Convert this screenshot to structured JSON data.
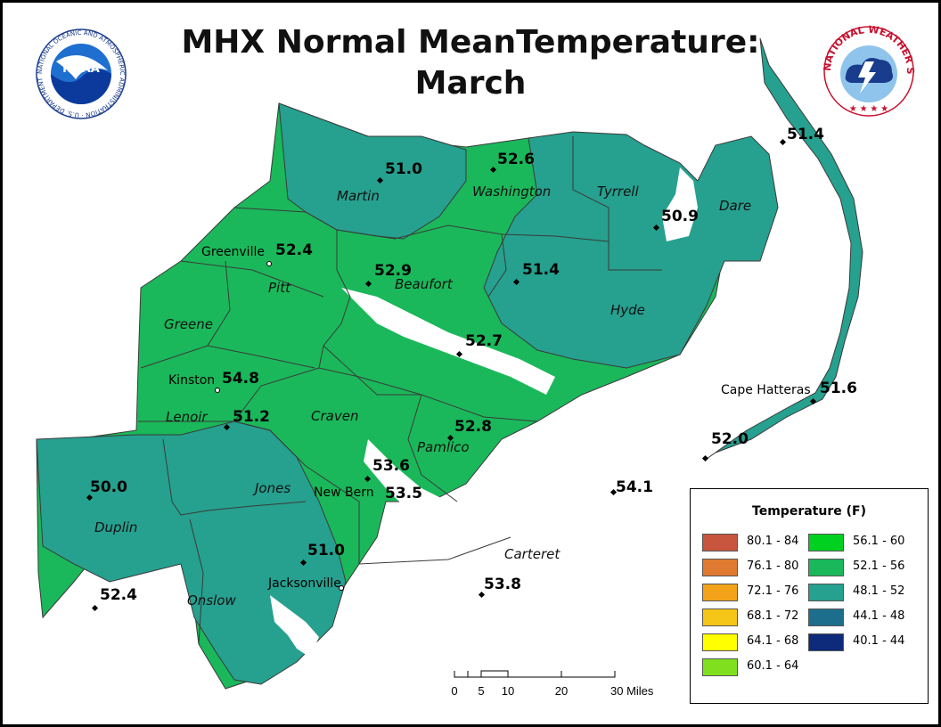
{
  "title": {
    "line1": "MHX Normal MeanTemperature:",
    "line2": "March"
  },
  "logos": {
    "noaa_text": "NOAA",
    "noaa_ring": "NATIONAL OCEANIC AND ATMOSPHERIC ADMINISTRATION · U.S. DEPARTMENT OF COMMERCE",
    "nws_ring": "NATIONAL WEATHER SERVICE"
  },
  "colors": {
    "water": "#ffffff",
    "c48_52": "#26a08f",
    "c52_56": "#1ab85a",
    "boundary": "#3a3a3a"
  },
  "counties": {
    "martin": "Martin",
    "washington": "Washington",
    "tyrrell": "Tyrrell",
    "dare": "Dare",
    "pitt": "Pitt",
    "beaufort": "Beaufort",
    "hyde": "Hyde",
    "greene": "Greene",
    "lenoir": "Lenoir",
    "craven": "Craven",
    "pamlico": "Pamlico",
    "jones": "Jones",
    "duplin": "Duplin",
    "onslow": "Onslow",
    "carteret": "Carteret"
  },
  "places": {
    "greenville": "Greenville",
    "kinston": "Kinston",
    "new_bern": "New Bern",
    "jacksonville": "Jacksonville",
    "cape_hatteras": "Cape Hatteras"
  },
  "stations": {
    "s_martin": "51.0",
    "s_washington": "52.6",
    "s_manteo": "51.4",
    "s_tyrrell": "50.9",
    "s_greenville": "52.4",
    "s_beaufort": "52.9",
    "s_hyde": "51.4",
    "s_aurora": "52.7",
    "s_kinston": "54.8",
    "s_lenoir": "51.2",
    "s_pamlico": "52.8",
    "s_hatteras": "51.6",
    "s_buxton": "52.0",
    "s_newbern1": "53.6",
    "s_newbern2": "53.5",
    "s_cedar": "54.1",
    "s_duplin": "50.0",
    "s_jacksonville": "51.0",
    "s_morehead": "53.8",
    "s_duplin_s": "52.4"
  },
  "legend": {
    "title": "Temperature (F)",
    "items": [
      {
        "label": "80.1 - 84",
        "color": "#c8553d"
      },
      {
        "label": "76.1 - 80",
        "color": "#e07a30"
      },
      {
        "label": "72.1 - 76",
        "color": "#f2a31a"
      },
      {
        "label": "68.1 - 72",
        "color": "#f5c518"
      },
      {
        "label": "64.1 - 68",
        "color": "#ffff00"
      },
      {
        "label": "60.1 - 64",
        "color": "#80e020"
      },
      {
        "label": "56.1 - 60",
        "color": "#00d020"
      },
      {
        "label": "52.1 - 56",
        "color": "#1ab85a"
      },
      {
        "label": "48.1 - 52",
        "color": "#26a08f"
      },
      {
        "label": "44.1 - 48",
        "color": "#1c6e8c"
      },
      {
        "label": "40.1 - 44",
        "color": "#0e2a7a"
      }
    ]
  },
  "scale": {
    "t0": "0",
    "t5": "5",
    "t10": "10",
    "t20": "20",
    "t30": "30 Miles"
  }
}
